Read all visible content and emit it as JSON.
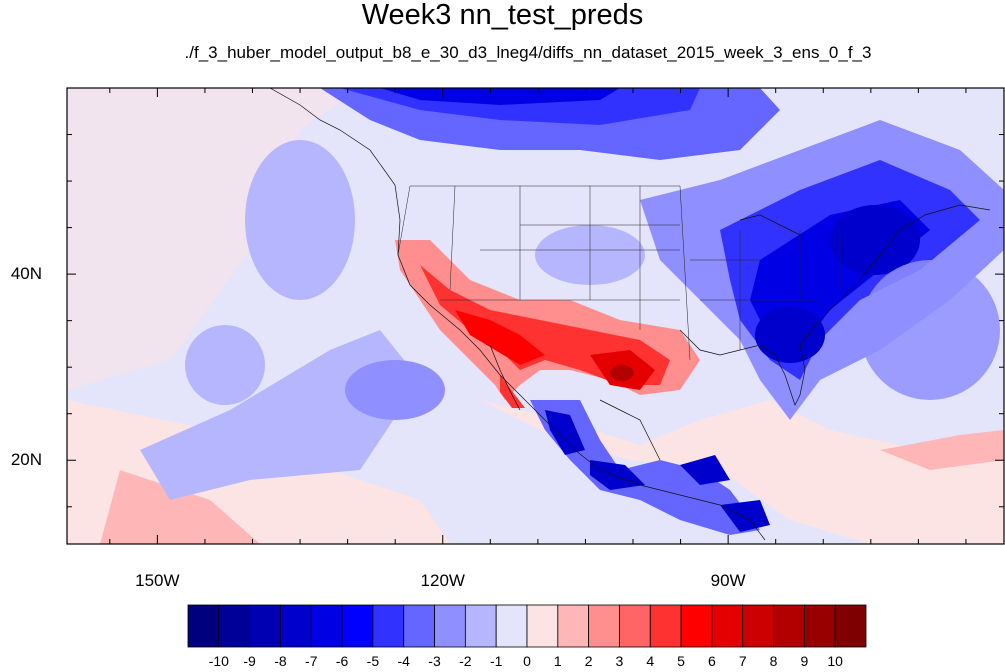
{
  "title": "Week3 nn_test_preds",
  "subtitle": "./f_3_huber_model_output_b8_e_30_d3_lneg4/diffs_nn_dataset_2015_week_3_ens_0_f_3",
  "axes": {
    "x_ticks": [
      {
        "lon": -150,
        "label": "150W"
      },
      {
        "lon": -120,
        "label": "120W"
      },
      {
        "lon": -90,
        "label": "90W"
      }
    ],
    "y_ticks": [
      {
        "lat": 40,
        "label": "40N"
      },
      {
        "lat": 20,
        "label": "20N"
      }
    ],
    "lon_range": [
      -159.5,
      -61
    ],
    "lat_range": [
      11,
      60
    ]
  },
  "colorbar": {
    "labels": [
      "-10",
      "-9",
      "-8",
      "-7",
      "-6",
      "-5",
      "-4",
      "-3",
      "-2",
      "-1",
      "0",
      "1",
      "2",
      "3",
      "4",
      "5",
      "6",
      "7",
      "8",
      "9",
      "10"
    ],
    "colors": [
      "#00007f",
      "#000098",
      "#0000b2",
      "#0000cc",
      "#0000e5",
      "#0000ff",
      "#3232ff",
      "#6565ff",
      "#8f8fff",
      "#b6b6ff",
      "#e4e4fb",
      "#fde4e4",
      "#ffb6b6",
      "#ff8f8f",
      "#ff6565",
      "#ff3232",
      "#ff0000",
      "#e50000",
      "#cc0000",
      "#b20000",
      "#980000",
      "#7f0000"
    ]
  }
}
